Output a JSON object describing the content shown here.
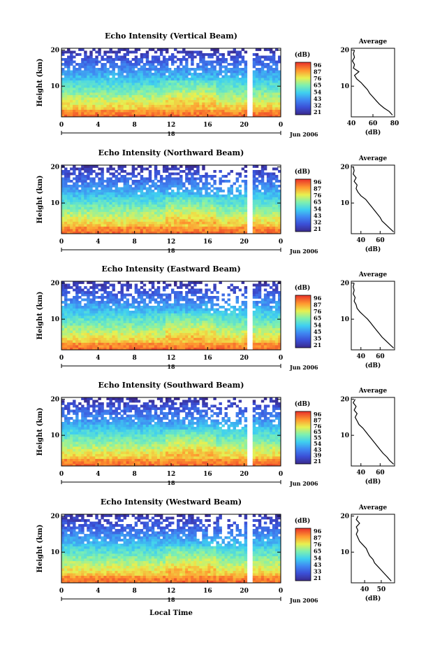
{
  "figure": {
    "xlabel": "Local Time"
  },
  "chart_data": [
    {
      "type": "heatmap",
      "title": "Echo Intensity (Vertical Beam)",
      "ylabel": "Height (km)",
      "date_label": "Jun 2006",
      "day_label": "18",
      "x_ticks": [
        "0",
        "4",
        "8",
        "12",
        "16",
        "20",
        "0"
      ],
      "y_ticks": [
        "10",
        "20"
      ],
      "xlim": [
        0,
        24
      ],
      "ylim": [
        1.5,
        20.5
      ],
      "colorbar": {
        "label": "(dB)",
        "ticks": [
          "96",
          "87",
          "76",
          "65",
          "54",
          "43",
          "32",
          "21"
        ]
      },
      "avg": {
        "title": "Average",
        "xlabel": "(dB)",
        "xticks": [
          "40",
          "60",
          "80"
        ],
        "xlim": [
          40,
          80
        ],
        "yticks": [
          "10",
          "20"
        ],
        "profile": [
          [
            78,
            2
          ],
          [
            75,
            3
          ],
          [
            70,
            4
          ],
          [
            66,
            5
          ],
          [
            63,
            6
          ],
          [
            60,
            7
          ],
          [
            57,
            8
          ],
          [
            55,
            9
          ],
          [
            52,
            10
          ],
          [
            49,
            11
          ],
          [
            45,
            12
          ],
          [
            43,
            13
          ],
          [
            47,
            14
          ],
          [
            42,
            15
          ],
          [
            43,
            16
          ],
          [
            41,
            17
          ],
          [
            43,
            18
          ],
          [
            42,
            19
          ],
          [
            43,
            20
          ]
        ]
      }
    },
    {
      "type": "heatmap",
      "title": "Echo Intensity (Northward Beam)",
      "ylabel": "Height (km)",
      "date_label": "Jun 2006",
      "day_label": "18",
      "x_ticks": [
        "0",
        "4",
        "8",
        "12",
        "16",
        "20",
        "0"
      ],
      "y_ticks": [
        "10",
        "20"
      ],
      "xlim": [
        0,
        24
      ],
      "ylim": [
        1.5,
        20.5
      ],
      "colorbar": {
        "label": "(dB)",
        "ticks": [
          "96",
          "87",
          "76",
          "65",
          "54",
          "43",
          "32",
          "21"
        ]
      },
      "avg": {
        "title": "Average",
        "xlabel": "(dB)",
        "xticks": [
          "40",
          "60"
        ],
        "xlim": [
          30,
          75
        ],
        "yticks": [
          "10",
          "20"
        ],
        "profile": [
          [
            74,
            2
          ],
          [
            70,
            3
          ],
          [
            66,
            4
          ],
          [
            62,
            5
          ],
          [
            60,
            6
          ],
          [
            57,
            7
          ],
          [
            54,
            8
          ],
          [
            51,
            9
          ],
          [
            48,
            10
          ],
          [
            45,
            11
          ],
          [
            40,
            12
          ],
          [
            37,
            13
          ],
          [
            35,
            14
          ],
          [
            36,
            15
          ],
          [
            33,
            16
          ],
          [
            35,
            17
          ],
          [
            32,
            18
          ],
          [
            33,
            19
          ],
          [
            32,
            20
          ]
        ]
      }
    },
    {
      "type": "heatmap",
      "title": "Echo Intensity (Eastward Beam)",
      "ylabel": "Height (km)",
      "date_label": "Jun 2006",
      "day_label": "18",
      "x_ticks": [
        "0",
        "4",
        "8",
        "12",
        "16",
        "20",
        "0"
      ],
      "y_ticks": [
        "10",
        "20"
      ],
      "xlim": [
        0,
        24
      ],
      "ylim": [
        1.5,
        20.5
      ],
      "colorbar": {
        "label": "(dB)",
        "ticks": [
          "96",
          "87",
          "76",
          "65",
          "54",
          "45",
          "35",
          "21"
        ]
      },
      "avg": {
        "title": "Average",
        "xlabel": "(dB)",
        "xticks": [
          "40",
          "60"
        ],
        "xlim": [
          30,
          75
        ],
        "yticks": [
          "10",
          "20"
        ],
        "profile": [
          [
            74,
            2
          ],
          [
            70,
            3
          ],
          [
            66,
            4
          ],
          [
            62,
            5
          ],
          [
            59,
            6
          ],
          [
            56,
            7
          ],
          [
            53,
            8
          ],
          [
            50,
            9
          ],
          [
            47,
            10
          ],
          [
            43,
            11
          ],
          [
            39,
            12
          ],
          [
            36,
            13
          ],
          [
            35,
            14
          ],
          [
            33,
            15
          ],
          [
            34,
            16
          ],
          [
            32,
            17
          ],
          [
            33,
            18
          ],
          [
            32,
            19
          ],
          [
            33,
            20
          ]
        ]
      }
    },
    {
      "type": "heatmap",
      "title": "Echo Intensity (Southward Beam)",
      "ylabel": "Height (km)",
      "date_label": "Jun 2006",
      "day_label": "18",
      "x_ticks": [
        "0",
        "4",
        "8",
        "12",
        "16",
        "20",
        "0"
      ],
      "y_ticks": [
        "10",
        "20"
      ],
      "xlim": [
        0,
        24
      ],
      "ylim": [
        1.5,
        20.5
      ],
      "colorbar": {
        "label": "(dB)",
        "ticks": [
          "96",
          "87",
          "76",
          "65",
          "55",
          "54",
          "43",
          "39",
          "21"
        ]
      },
      "avg": {
        "title": "Average",
        "xlabel": "(dB)",
        "xticks": [
          "40",
          "60"
        ],
        "xlim": [
          30,
          75
        ],
        "yticks": [
          "10",
          "20"
        ],
        "profile": [
          [
            74,
            2
          ],
          [
            70,
            3
          ],
          [
            67,
            4
          ],
          [
            63,
            5
          ],
          [
            60,
            6
          ],
          [
            57,
            7
          ],
          [
            54,
            8
          ],
          [
            51,
            9
          ],
          [
            48,
            10
          ],
          [
            45,
            11
          ],
          [
            42,
            12
          ],
          [
            38,
            13
          ],
          [
            36,
            14
          ],
          [
            34,
            15
          ],
          [
            36,
            16
          ],
          [
            33,
            17
          ],
          [
            35,
            18
          ],
          [
            32,
            19
          ],
          [
            34,
            20
          ]
        ]
      }
    },
    {
      "type": "heatmap",
      "title": "Echo Intensity (Westward Beam)",
      "ylabel": "Height (km)",
      "date_label": "Jun 2006",
      "day_label": "18",
      "x_ticks": [
        "0",
        "4",
        "8",
        "12",
        "16",
        "20",
        "0"
      ],
      "y_ticks": [
        "10",
        "20"
      ],
      "xlim": [
        0,
        24
      ],
      "ylim": [
        1.5,
        20.5
      ],
      "colorbar": {
        "label": "(dB)",
        "ticks": [
          "96",
          "87",
          "76",
          "65",
          "54",
          "43",
          "33",
          "21"
        ]
      },
      "avg": {
        "title": "Average",
        "xlabel": "(dB)",
        "xticks": [
          "40",
          "50"
        ],
        "xlim": [
          32,
          58
        ],
        "yticks": [
          "10",
          "20"
        ],
        "profile": [
          [
            56,
            2
          ],
          [
            54,
            3
          ],
          [
            52,
            4
          ],
          [
            50,
            5
          ],
          [
            48,
            6
          ],
          [
            46,
            7
          ],
          [
            45,
            8
          ],
          [
            43,
            9
          ],
          [
            42,
            10
          ],
          [
            41,
            11
          ],
          [
            39,
            12
          ],
          [
            37,
            13
          ],
          [
            36,
            14
          ],
          [
            35,
            15
          ],
          [
            36,
            16
          ],
          [
            35,
            17
          ],
          [
            37,
            18
          ],
          [
            35,
            19
          ],
          [
            36,
            20
          ]
        ]
      }
    }
  ]
}
